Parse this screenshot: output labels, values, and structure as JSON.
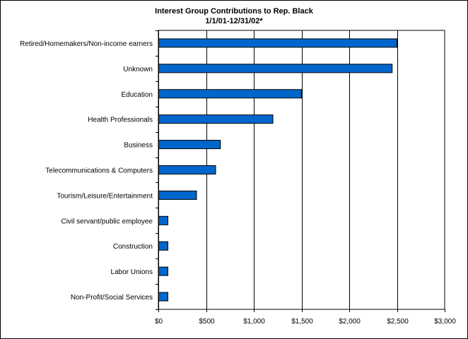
{
  "chart_data": {
    "type": "bar",
    "orientation": "horizontal",
    "title": "Interest Group Contributions to Rep. Black",
    "subtitle": "1/1/01-12/31/02*",
    "categories": [
      "Retired/Homemakers/Non-income earners",
      "Unknown",
      "Education",
      "Health Professionals",
      "Business",
      "Telecommunications & Computers",
      "Tourism/Leisure/Entertainment",
      "Civil servant/public employee",
      "Construction",
      "Labor Unions",
      "Non-Profit/Social Services"
    ],
    "values": [
      2500,
      2450,
      1500,
      1200,
      650,
      600,
      400,
      100,
      100,
      100,
      100
    ],
    "xlim": [
      0,
      3000
    ],
    "xticks": [
      0,
      500,
      1000,
      1500,
      2000,
      2500,
      3000
    ],
    "xtick_labels": [
      "$0",
      "$500",
      "$1,000",
      "$1,500",
      "$2,000",
      "$2,500",
      "$3,000"
    ],
    "xlabel": "",
    "ylabel": "",
    "grid": "vertical",
    "legend": "none",
    "bar_color": "#0066CC"
  }
}
